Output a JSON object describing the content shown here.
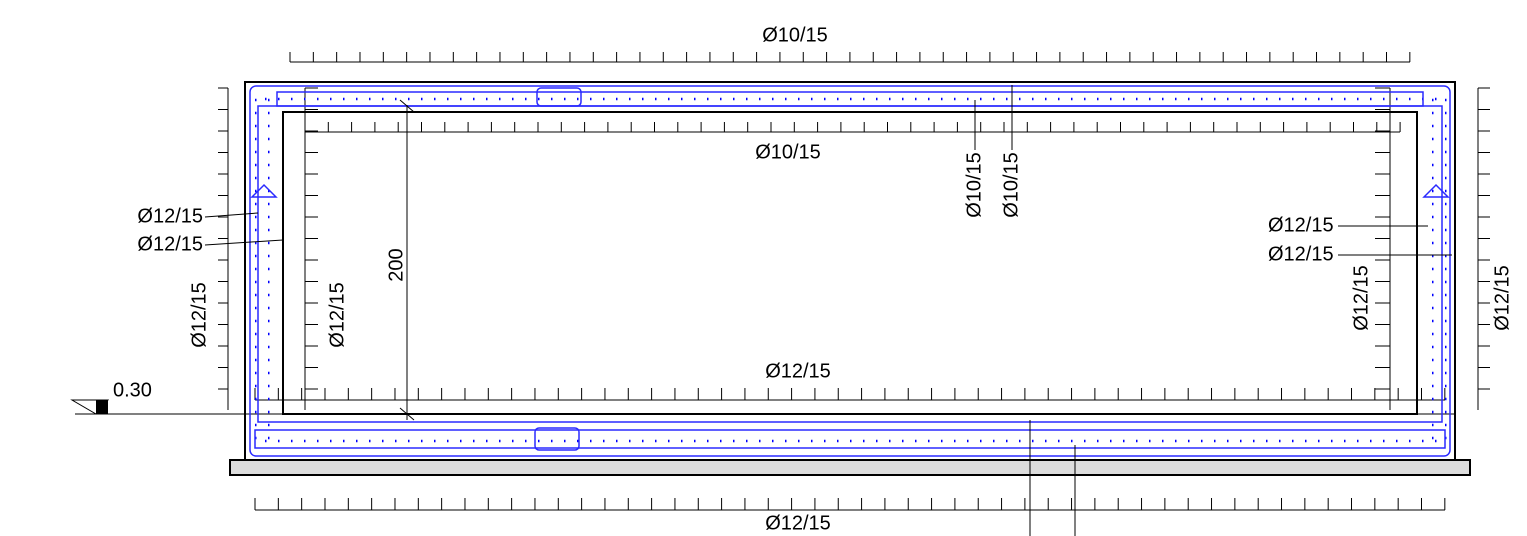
{
  "labels": {
    "top_outer": "Ø10/15",
    "top_inner": "Ø10/15",
    "top_vertical_1": "Ø10/15",
    "top_vertical_2": "Ø10/15",
    "left_1": "Ø12/15",
    "left_2": "Ø12/15",
    "left_vertical_outer": "Ø12/15",
    "left_vertical_inner": "Ø12/15",
    "height": "200",
    "level": "0.30",
    "right_1": "Ø12/15",
    "right_2": "Ø12/15",
    "right_vertical_inner": "Ø12/15",
    "right_vertical_outer": "Ø12/15",
    "bottom_inner": "Ø12/15",
    "bottom_outer": "Ø12/15"
  }
}
